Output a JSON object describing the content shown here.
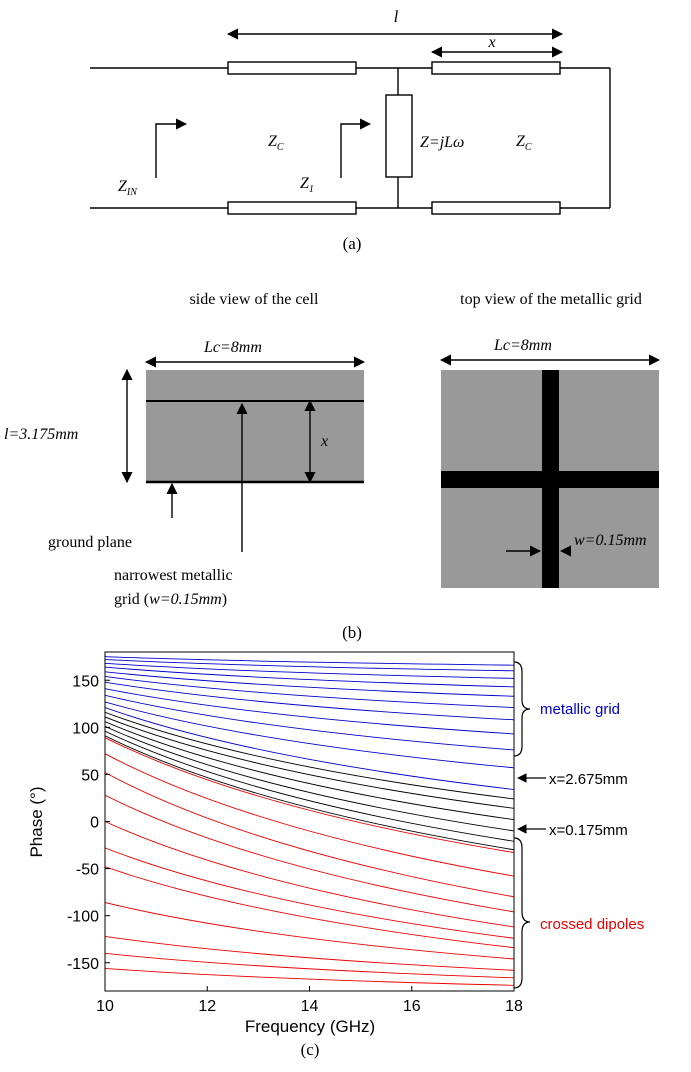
{
  "panel_a": {
    "label_l": "l",
    "label_x": "x",
    "label_zc_left": "Z",
    "label_zc_left_sub": "C",
    "label_zin": "Z",
    "label_zin_sub": "IN",
    "label_z1": "Z",
    "label_z1_sub": "1",
    "label_z_load": "Z=jLω",
    "label_zc_right": "Z",
    "label_zc_right_sub": "C",
    "caption": "(a)"
  },
  "panel_b": {
    "side_title": "side view of the cell",
    "top_title": "top view of the metallic grid",
    "side_lc": "Lc=8mm",
    "top_lc": "Lc=8mm",
    "thickness": "l=3.175mm",
    "x_label": "x",
    "ground_plane": "ground plane",
    "grid_note_line1": "narrowest metallic",
    "grid_note_line2_prefix": "grid (",
    "grid_note_line2_value": "w=0.15mm",
    "grid_note_line2_suffix": ")",
    "width_label": "w=0.15mm",
    "caption": "(b)"
  },
  "panel_c": {
    "caption": "(c)",
    "brace_labels": {
      "metallic_grid": "metallic grid",
      "crossed_dipoles": "crossed dipoles"
    },
    "annotations": [
      "x=2.675mm",
      "x=0.175mm"
    ],
    "colors": {
      "grid": "#0000cc",
      "mid": "#000000",
      "dipole": "#ee0000",
      "axis": "#000000"
    }
  },
  "chart_data": {
    "type": "line",
    "xlabel": "Frequency (GHz)",
    "ylabel": "Phase (°)",
    "xlim": [
      10,
      18
    ],
    "ylim": [
      -180,
      180
    ],
    "xticks": [
      10,
      12,
      14,
      16,
      18
    ],
    "yticks": [
      150,
      100,
      50,
      0,
      -50,
      -100,
      -150
    ],
    "grid": false,
    "x": [
      10,
      18
    ],
    "series": [
      {
        "group": "metallic grid",
        "values": [
          175,
          166
        ]
      },
      {
        "group": "metallic grid",
        "values": [
          172,
          160
        ]
      },
      {
        "group": "metallic grid",
        "values": [
          168,
          152
        ]
      },
      {
        "group": "metallic grid",
        "values": [
          164,
          143
        ]
      },
      {
        "group": "metallic grid",
        "values": [
          159,
          133
        ]
      },
      {
        "group": "metallic grid",
        "values": [
          154,
          121
        ]
      },
      {
        "group": "metallic grid",
        "values": [
          148,
          108
        ]
      },
      {
        "group": "metallic grid",
        "values": [
          141,
          93
        ]
      },
      {
        "group": "metallic grid",
        "values": [
          134,
          76
        ]
      },
      {
        "group": "metallic grid",
        "values": [
          127,
          57
        ]
      },
      {
        "group": "metallic grid",
        "values": [
          121,
          34
        ]
      },
      {
        "group": "middle",
        "values": [
          116,
          24
        ]
      },
      {
        "group": "middle",
        "values": [
          111,
          14
        ]
      },
      {
        "group": "middle",
        "values": [
          106,
          2
        ]
      },
      {
        "group": "middle",
        "values": [
          101,
          -10
        ]
      },
      {
        "group": "middle",
        "values": [
          96,
          -21
        ]
      },
      {
        "group": "middle",
        "values": [
          91,
          -30
        ]
      },
      {
        "group": "crossed dipoles",
        "values": [
          89,
          -33
        ]
      },
      {
        "group": "crossed dipoles",
        "values": [
          72,
          -58
        ]
      },
      {
        "group": "crossed dipoles",
        "values": [
          52,
          -80
        ]
      },
      {
        "group": "crossed dipoles",
        "values": [
          28,
          -96
        ]
      },
      {
        "group": "crossed dipoles",
        "values": [
          0,
          -112
        ]
      },
      {
        "group": "crossed dipoles",
        "values": [
          -28,
          -124
        ]
      },
      {
        "group": "crossed dipoles",
        "values": [
          -48,
          -134
        ]
      },
      {
        "group": "crossed dipoles",
        "values": [
          -86,
          -146
        ]
      },
      {
        "group": "crossed dipoles",
        "values": [
          -122,
          -158
        ]
      },
      {
        "group": "crossed dipoles",
        "values": [
          -140,
          -166
        ]
      },
      {
        "group": "crossed dipoles",
        "values": [
          -156,
          -174
        ]
      }
    ]
  }
}
